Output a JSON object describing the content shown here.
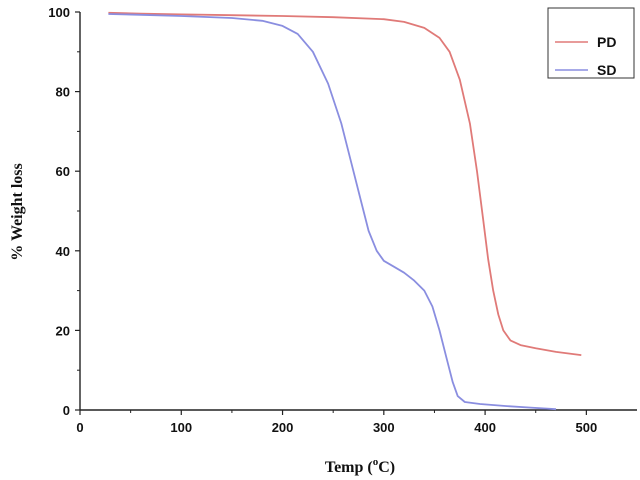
{
  "chart_data": {
    "type": "line",
    "xlabel_main": "Temp (",
    "xlabel_sup": "o",
    "xlabel_unit": "C)",
    "ylabel": "% Weight loss",
    "xlim": [
      0,
      550
    ],
    "ylim": [
      0,
      100
    ],
    "x_ticks": [
      0,
      100,
      200,
      300,
      400,
      500
    ],
    "y_ticks": [
      0,
      20,
      40,
      60,
      80,
      100
    ],
    "legend_position": "top-right",
    "series": [
      {
        "name": "PD",
        "color": "#e07a78",
        "points": [
          [
            28,
            99.8
          ],
          [
            60,
            99.6
          ],
          [
            100,
            99.4
          ],
          [
            150,
            99.2
          ],
          [
            200,
            99.0
          ],
          [
            250,
            98.7
          ],
          [
            300,
            98.2
          ],
          [
            320,
            97.5
          ],
          [
            340,
            96.0
          ],
          [
            355,
            93.5
          ],
          [
            365,
            90.0
          ],
          [
            375,
            83.0
          ],
          [
            385,
            72.0
          ],
          [
            392,
            60.0
          ],
          [
            398,
            48.0
          ],
          [
            403,
            38.0
          ],
          [
            408,
            30.0
          ],
          [
            413,
            24.0
          ],
          [
            418,
            20.0
          ],
          [
            425,
            17.5
          ],
          [
            435,
            16.3
          ],
          [
            450,
            15.5
          ],
          [
            470,
            14.6
          ],
          [
            495,
            13.8
          ]
        ]
      },
      {
        "name": "SD",
        "color": "#8a8ee0",
        "points": [
          [
            28,
            99.5
          ],
          [
            60,
            99.3
          ],
          [
            100,
            99.0
          ],
          [
            150,
            98.5
          ],
          [
            180,
            97.8
          ],
          [
            200,
            96.5
          ],
          [
            215,
            94.5
          ],
          [
            230,
            90.0
          ],
          [
            245,
            82.0
          ],
          [
            258,
            72.0
          ],
          [
            268,
            62.0
          ],
          [
            278,
            52.0
          ],
          [
            285,
            45.0
          ],
          [
            293,
            40.0
          ],
          [
            300,
            37.5
          ],
          [
            310,
            36.0
          ],
          [
            320,
            34.5
          ],
          [
            330,
            32.5
          ],
          [
            340,
            30.0
          ],
          [
            348,
            26.0
          ],
          [
            355,
            20.0
          ],
          [
            362,
            13.0
          ],
          [
            368,
            7.0
          ],
          [
            373,
            3.5
          ],
          [
            380,
            2.0
          ],
          [
            395,
            1.5
          ],
          [
            420,
            1.0
          ],
          [
            445,
            0.6
          ],
          [
            470,
            0.2
          ]
        ]
      }
    ]
  }
}
